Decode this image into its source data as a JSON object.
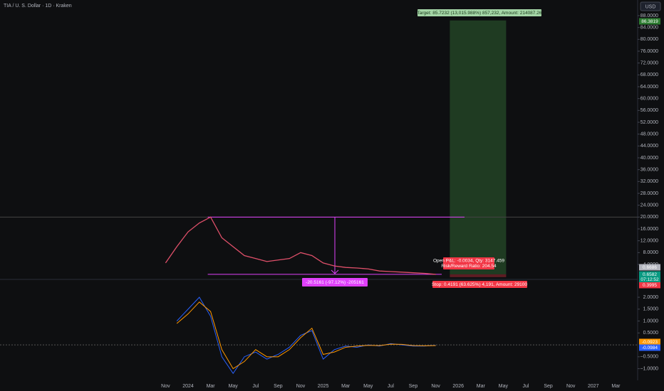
{
  "header": {
    "title": "TIA / U. S. Dollar · 1D · Kraken",
    "currency": "USD"
  },
  "price_pane": {
    "ylim": [
      -0.8,
      93.28
    ],
    "yticks": [
      {
        "value": 88,
        "label": "88.0000"
      },
      {
        "value": 84,
        "label": "84.0000"
      },
      {
        "value": 80,
        "label": "80.0000"
      },
      {
        "value": 76,
        "label": "76.0000"
      },
      {
        "value": 72,
        "label": "72.0000"
      },
      {
        "value": 68,
        "label": "68.0000"
      },
      {
        "value": 64,
        "label": "64.0000"
      },
      {
        "value": 60,
        "label": "60.0000"
      },
      {
        "value": 56,
        "label": "56.0000"
      },
      {
        "value": 52,
        "label": "52.0000"
      },
      {
        "value": 48,
        "label": "48.0000"
      },
      {
        "value": 44,
        "label": "44.0000"
      },
      {
        "value": 40,
        "label": "40.0000"
      },
      {
        "value": 36,
        "label": "36.0000"
      },
      {
        "value": 32,
        "label": "32.0000"
      },
      {
        "value": 28,
        "label": "28.0000"
      },
      {
        "value": 24,
        "label": "24.0000"
      },
      {
        "value": 20,
        "label": "20.0000"
      },
      {
        "value": 16,
        "label": "16.0000"
      },
      {
        "value": 12,
        "label": "12.0000"
      },
      {
        "value": 8,
        "label": "8.0000"
      },
      {
        "value": 4,
        "label": "4.0000"
      }
    ],
    "dates": [
      "2023-11",
      "2023-12",
      "2024-01",
      "2024-02",
      "2024-03",
      "2024-04",
      "2024-05",
      "2024-06",
      "2024-07",
      "2024-08",
      "2024-09",
      "2024-10",
      "2024-11",
      "2024-12",
      "2025-01",
      "2025-02",
      "2025-03",
      "2025-04",
      "2025-05",
      "2025-06",
      "2025-07",
      "2025-08",
      "2025-09",
      "2025-10",
      "2025-11"
    ],
    "values": [
      4.5,
      10,
      15,
      18,
      20,
      13,
      10,
      7,
      6,
      5,
      5.5,
      6,
      8,
      7,
      4.5,
      3.5,
      3,
      2.8,
      2.5,
      1.8,
      1.6,
      1.4,
      1.2,
      1.0,
      0.66
    ],
    "color": "#e0506a",
    "badges": [
      {
        "value": 86.3819,
        "color": "#2e7d32"
      },
      {
        "value": 0.6686,
        "color": "#b2b5be"
      },
      {
        "value": 0.6582,
        "color": "#089981"
      },
      {
        "value": 0.3995,
        "color": "#f23645"
      }
    ],
    "countdown": "07:12:52",
    "target_box": {
      "text": "Target: 85.7232 (13,015.988%) 857,232, Amount: 214087.26",
      "top": 86.3819,
      "bottom": 0.6686
    },
    "pnl_box": {
      "line1": "Open P&L: -0.0034, Qty: 3147.459",
      "line2": "Risk/Reward Ratio: 204.54"
    },
    "stop_box": {
      "text": "Stop: 0.4191 (63.625%) 4,191, Amount: 29100"
    },
    "measure_box": {
      "text": "-20.5161 (-97.12%) -205161"
    }
  },
  "osc_pane": {
    "ylim": [
      -1.49,
      2.69
    ],
    "yticks": [
      {
        "value": 2,
        "label": "2.0000"
      },
      {
        "value": 1.5,
        "label": "1.5000"
      },
      {
        "value": 1,
        "label": "1.0000"
      },
      {
        "value": 0.5,
        "label": "0.5000"
      },
      {
        "value": -0.5,
        "label": "−0.5000"
      },
      {
        "value": -1,
        "label": "−1.0000"
      }
    ],
    "dates": [
      "2023-12",
      "2024-01",
      "2024-02",
      "2024-03",
      "2024-04",
      "2024-05",
      "2024-06",
      "2024-07",
      "2024-08",
      "2024-09",
      "2024-10",
      "2024-11",
      "2024-12",
      "2025-01",
      "2025-02",
      "2025-03",
      "2025-04",
      "2025-05",
      "2025-06",
      "2025-07",
      "2025-08",
      "2025-09",
      "2025-10",
      "2025-11"
    ],
    "series": [
      {
        "color": "#2962ff",
        "values": [
          1.0,
          1.5,
          2.0,
          1.2,
          -0.5,
          -1.2,
          -0.5,
          -0.3,
          -0.6,
          -0.4,
          -0.1,
          0.4,
          0.6,
          -0.6,
          -0.2,
          -0.05,
          -0.1,
          0.0,
          -0.05,
          0.05,
          0.0,
          -0.05,
          -0.05,
          -0.02
        ]
      },
      {
        "color": "#ff9800",
        "values": [
          0.9,
          1.3,
          1.8,
          1.4,
          -0.2,
          -1.0,
          -0.7,
          -0.2,
          -0.5,
          -0.5,
          -0.2,
          0.3,
          0.7,
          -0.4,
          -0.3,
          -0.1,
          -0.05,
          -0.02,
          -0.03,
          0.03,
          0.02,
          -0.03,
          -0.04,
          -0.03
        ]
      }
    ],
    "badges": [
      {
        "value": -0.0923,
        "color": "#ff9800"
      },
      {
        "value": -0.0984,
        "color": "#2962ff"
      }
    ]
  },
  "time_axis": {
    "ticks": [
      {
        "value": "2023-11",
        "label": "Nov"
      },
      {
        "value": "2024-01",
        "label": "2024"
      },
      {
        "value": "2024-03",
        "label": "Mar"
      },
      {
        "value": "2024-05",
        "label": "May"
      },
      {
        "value": "2024-07",
        "label": "Jul"
      },
      {
        "value": "2024-09",
        "label": "Sep"
      },
      {
        "value": "2024-11",
        "label": "Nov"
      },
      {
        "value": "2025-01",
        "label": "2025"
      },
      {
        "value": "2025-03",
        "label": "Mar"
      },
      {
        "value": "2025-05",
        "label": "May"
      },
      {
        "value": "2025-07",
        "label": "Jul"
      },
      {
        "value": "2025-09",
        "label": "Sep"
      },
      {
        "value": "2025-11",
        "label": "Nov"
      },
      {
        "value": "2026-01",
        "label": "2026"
      },
      {
        "value": "2026-03",
        "label": "Mar"
      },
      {
        "value": "2026-05",
        "label": "May"
      },
      {
        "value": "2026-07",
        "label": "Jul"
      },
      {
        "value": "2026-09",
        "label": "Sep"
      },
      {
        "value": "2026-11",
        "label": "Nov"
      },
      {
        "value": "2027-01",
        "label": "2027"
      },
      {
        "value": "2027-03",
        "label": "Mar"
      }
    ]
  }
}
